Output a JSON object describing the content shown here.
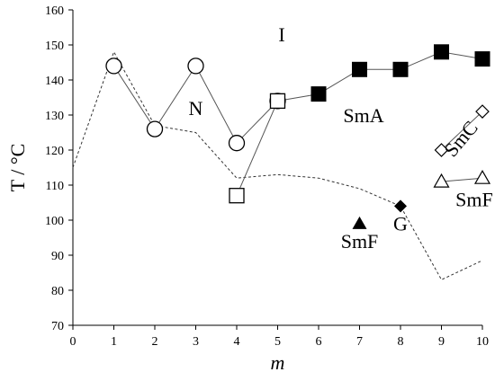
{
  "chart_data": {
    "type": "line",
    "xlabel": "m",
    "ylabel": "T / °C",
    "xlim": [
      0,
      10
    ],
    "ylim": [
      70,
      160
    ],
    "x_ticks": [
      0,
      1,
      2,
      3,
      4,
      5,
      6,
      7,
      8,
      9,
      10
    ],
    "y_ticks": [
      70,
      80,
      90,
      100,
      110,
      120,
      130,
      140,
      150,
      160
    ],
    "grid": false,
    "series": [
      {
        "marker": "dashed-line",
        "points": [
          [
            0,
            115
          ],
          [
            1,
            148
          ],
          [
            2,
            127
          ],
          [
            3,
            125
          ],
          [
            4,
            112
          ],
          [
            5,
            113
          ],
          [
            6,
            112
          ],
          [
            7,
            109
          ],
          [
            8,
            104
          ],
          [
            9,
            83
          ],
          [
            10,
            88.5
          ]
        ]
      },
      {
        "marker": "open-circle",
        "points": [
          [
            1,
            144
          ],
          [
            2,
            126
          ],
          [
            3,
            144
          ],
          [
            4,
            122
          ],
          [
            5,
            134
          ]
        ]
      },
      {
        "marker": "filled-square",
        "points": [
          [
            5,
            134
          ],
          [
            6,
            136
          ],
          [
            7,
            143
          ],
          [
            8,
            143
          ],
          [
            9,
            148
          ],
          [
            10,
            146
          ]
        ]
      },
      {
        "marker": "open-square",
        "points": [
          [
            4,
            107
          ],
          [
            5,
            134
          ]
        ]
      },
      {
        "marker": "open-diamond",
        "points": [
          [
            9,
            120
          ],
          [
            10,
            131
          ]
        ]
      },
      {
        "marker": "open-triangle",
        "points": [
          [
            9,
            111
          ],
          [
            10,
            112
          ]
        ]
      },
      {
        "marker": "filled-triangle",
        "points": [
          [
            7,
            99
          ]
        ]
      },
      {
        "marker": "filled-diamond",
        "points": [
          [
            8,
            104
          ]
        ]
      }
    ],
    "annotations": [
      {
        "text": "I",
        "x": 5.1,
        "y": 151
      },
      {
        "text": "N",
        "x": 3,
        "y": 130
      },
      {
        "text": "SmA",
        "x": 7.1,
        "y": 128
      },
      {
        "text": "SmC",
        "x": 9.6,
        "y": 122,
        "rotation": -50
      },
      {
        "text": "SmF",
        "x": 9.8,
        "y": 104
      },
      {
        "text": "SmF",
        "x": 7,
        "y": 92
      },
      {
        "text": "G",
        "x": 8,
        "y": 97
      }
    ]
  }
}
